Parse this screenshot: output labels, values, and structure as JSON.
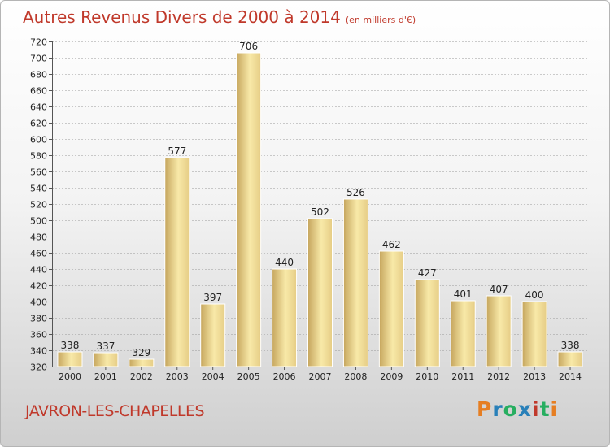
{
  "title": "Autres Revenus Divers de 2000 à 2014",
  "unit": "(en milliers d'€)",
  "commune": "JAVRON-LES-CHAPELLES",
  "logo": {
    "letters": [
      "P",
      "r",
      "o",
      "x",
      "i",
      "t",
      "i"
    ],
    "colors": [
      "#e67e22",
      "#2980b9",
      "#27ae60",
      "#2980b9",
      "#c0392b",
      "#27ae60",
      "#e67e22"
    ]
  },
  "colors": {
    "title": "#c0392b",
    "bar_light": "#f8e9a8",
    "bar_dark": "#c6a65e",
    "grid": "#9a9a9a"
  },
  "chart_data": {
    "type": "bar",
    "categories": [
      "2000",
      "2001",
      "2002",
      "2003",
      "2004",
      "2005",
      "2006",
      "2007",
      "2008",
      "2009",
      "2010",
      "2011",
      "2012",
      "2013",
      "2014"
    ],
    "values": [
      338,
      337,
      329,
      577,
      397,
      706,
      440,
      502,
      526,
      462,
      427,
      401,
      407,
      400,
      338
    ],
    "ylim": [
      320,
      720
    ],
    "yticks": [
      320,
      340,
      360,
      380,
      400,
      420,
      440,
      460,
      480,
      500,
      520,
      540,
      560,
      580,
      600,
      620,
      640,
      660,
      680,
      700,
      720
    ],
    "grid": true
  }
}
